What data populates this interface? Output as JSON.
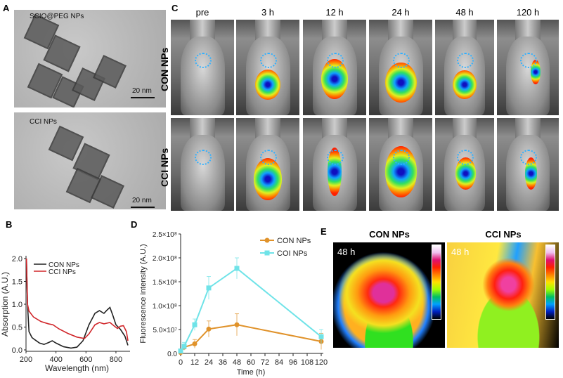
{
  "panels": {
    "A": {
      "label": "A",
      "images": [
        {
          "title": "SCIO@PEG NPs",
          "scale": "20 nm"
        },
        {
          "title": "CCI NPs",
          "scale": "20 nm"
        }
      ]
    },
    "C": {
      "label": "C",
      "timepoints": [
        "pre",
        "3 h",
        "12 h",
        "24 h",
        "48 h",
        "120 h"
      ],
      "rows": [
        "CON NPs",
        "CCI NPs"
      ]
    },
    "B": {
      "label": "B"
    },
    "D": {
      "label": "D"
    },
    "E": {
      "label": "E",
      "images": [
        {
          "title": "CON NPs",
          "time": "48 h"
        },
        {
          "title": "CCI NPs",
          "time": "48 h"
        }
      ]
    }
  },
  "chart_data": [
    {
      "panel": "B",
      "type": "line",
      "xlabel": "Wavelength (nm)",
      "ylabel": "Absorption (A.U.)",
      "xlim": [
        200,
        880
      ],
      "ylim": [
        0,
        2.0
      ],
      "xticks": [
        "200",
        "400",
        "600",
        "800"
      ],
      "yticks": [
        "0.0",
        "0.5",
        "1.0",
        "1.5",
        "2.0"
      ],
      "legend": "top-left",
      "series": [
        {
          "name": "CON NPs",
          "color": "#222222",
          "x": [
            203,
            210,
            220,
            240,
            260,
            290,
            320,
            350,
            375,
            400,
            450,
            500,
            540,
            580,
            620,
            660,
            690,
            720,
            740,
            760,
            780,
            800,
            830,
            860,
            880
          ],
          "y": [
            2.0,
            1.0,
            0.4,
            0.27,
            0.22,
            0.15,
            0.12,
            0.16,
            0.2,
            0.15,
            0.07,
            0.04,
            0.06,
            0.2,
            0.55,
            0.8,
            0.86,
            0.8,
            0.87,
            0.93,
            0.75,
            0.55,
            0.45,
            0.3,
            0.1
          ]
        },
        {
          "name": "CCI NPs",
          "color": "#d0262a",
          "x": [
            203,
            210,
            220,
            250,
            300,
            350,
            380,
            420,
            480,
            540,
            590,
            620,
            660,
            690,
            720,
            760,
            790,
            810,
            830,
            850,
            870,
            880
          ],
          "y": [
            2.0,
            1.0,
            0.85,
            0.72,
            0.62,
            0.57,
            0.55,
            0.46,
            0.36,
            0.28,
            0.25,
            0.35,
            0.55,
            0.6,
            0.57,
            0.6,
            0.52,
            0.47,
            0.52,
            0.53,
            0.4,
            0.2
          ]
        }
      ]
    },
    {
      "panel": "D",
      "type": "line",
      "xlabel": "Time (h)",
      "ylabel": "Fluorescence intensity (A.U.)",
      "xlim": [
        0,
        120
      ],
      "ylim": [
        0,
        250000000
      ],
      "xticks": [
        "0",
        "12",
        "24",
        "36",
        "48",
        "60",
        "72",
        "84",
        "96",
        "108",
        "120"
      ],
      "yticks": [
        "0.0",
        "5.0×10⁷",
        "1.0×10⁸",
        "1.5×10⁸",
        "2.0×10⁸",
        "2.5×10⁸"
      ],
      "legend": "top-right",
      "series": [
        {
          "name": "CON NPs",
          "color": "#e0922a",
          "x": [
            0,
            3,
            12,
            24,
            48,
            120
          ],
          "y": [
            2000000,
            13000000,
            20000000,
            51000000,
            60000000,
            25000000
          ],
          "err": [
            3000000,
            6000000,
            9000000,
            17000000,
            23000000,
            17000000
          ]
        },
        {
          "name": "COI NPs",
          "color": "#6fe3e8",
          "x": [
            0,
            3,
            12,
            24,
            48,
            120
          ],
          "y": [
            5000000,
            15000000,
            60000000,
            137000000,
            178000000,
            35000000
          ],
          "err": [
            4000000,
            8000000,
            12000000,
            24000000,
            22000000,
            15000000
          ]
        }
      ]
    }
  ]
}
